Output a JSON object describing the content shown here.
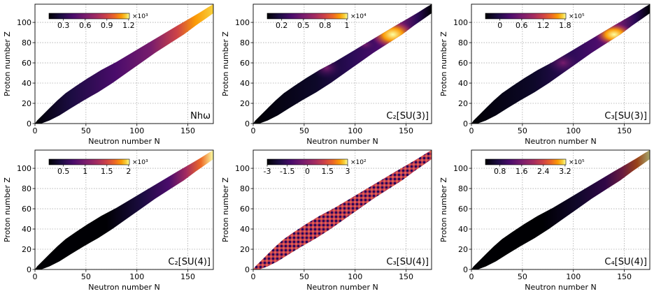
{
  "chart_data": [
    {
      "type": "heatmap",
      "panel_label": "Nhω",
      "xlabel": "Neutron number N",
      "ylabel": "Proton number Z",
      "xlim": [
        0,
        175
      ],
      "ylim": [
        0,
        118
      ],
      "xticks": [
        "0",
        "50",
        "100",
        "150"
      ],
      "yticks": [
        "0",
        "20",
        "40",
        "60",
        "80",
        "100"
      ],
      "grid": true,
      "colormap": "inferno",
      "colorbar": {
        "ticks": [
          "0.3",
          "0.6",
          "0.9",
          "1.2"
        ],
        "exponent": "×10³",
        "placement": "top-left"
      }
    },
    {
      "type": "heatmap",
      "panel_label": "C₂[SU(3)]",
      "xlabel": "Neutron number N",
      "ylabel": "Proton number Z",
      "xlim": [
        0,
        175
      ],
      "ylim": [
        0,
        118
      ],
      "xticks": [
        "0",
        "50",
        "100",
        "150"
      ],
      "yticks": [
        "0",
        "20",
        "40",
        "60",
        "80",
        "100"
      ],
      "grid": true,
      "colormap": "inferno",
      "colorbar": {
        "ticks": [
          "0.2",
          "0.5",
          "0.8",
          "1"
        ],
        "exponent": "×10⁴",
        "placement": "top-left"
      }
    },
    {
      "type": "heatmap",
      "panel_label": "C₃[SU(3)]",
      "xlabel": "Neutron number N",
      "ylabel": "Proton number Z",
      "xlim": [
        0,
        175
      ],
      "ylim": [
        0,
        118
      ],
      "xticks": [
        "0",
        "50",
        "100",
        "150"
      ],
      "yticks": [
        "0",
        "20",
        "40",
        "60",
        "80",
        "100"
      ],
      "grid": true,
      "colormap": "inferno",
      "colorbar": {
        "ticks": [
          "0",
          "0.6",
          "1.2",
          "1.8"
        ],
        "exponent": "×10⁵",
        "placement": "top-left"
      }
    },
    {
      "type": "heatmap",
      "panel_label": "C₂[SU(4)]",
      "xlabel": "Neutron number N",
      "ylabel": "Proton number Z",
      "xlim": [
        0,
        175
      ],
      "ylim": [
        0,
        118
      ],
      "xticks": [
        "0",
        "50",
        "100",
        "150"
      ],
      "yticks": [
        "0",
        "20",
        "40",
        "60",
        "80",
        "100"
      ],
      "grid": true,
      "colormap": "inferno",
      "colorbar": {
        "ticks": [
          "0.5",
          "1",
          "1.5",
          "2"
        ],
        "exponent": "×10³",
        "placement": "top-left"
      }
    },
    {
      "type": "heatmap",
      "panel_label": "C₃[SU(4)]",
      "xlabel": "Neutron number N",
      "ylabel": "Proton number Z",
      "xlim": [
        0,
        175
      ],
      "ylim": [
        0,
        118
      ],
      "xticks": [
        "0",
        "50",
        "100",
        "150"
      ],
      "yticks": [
        "0",
        "20",
        "40",
        "60",
        "80",
        "100"
      ],
      "grid": true,
      "colormap": "inferno",
      "colorbar": {
        "ticks": [
          "-3",
          "-1.5",
          "0",
          "1.5",
          "3"
        ],
        "exponent": "×10²",
        "placement": "top-left"
      }
    },
    {
      "type": "heatmap",
      "panel_label": "C₄[SU(4)]",
      "xlabel": "Neutron number N",
      "ylabel": "Proton number Z",
      "xlim": [
        0,
        175
      ],
      "ylim": [
        0,
        118
      ],
      "xticks": [
        "0",
        "50",
        "100",
        "150"
      ],
      "yticks": [
        "0",
        "20",
        "40",
        "60",
        "80",
        "100"
      ],
      "grid": true,
      "colormap": "inferno",
      "colorbar": {
        "ticks": [
          "0.8",
          "1.6",
          "2.4",
          "3.2"
        ],
        "exponent": "×10⁵",
        "placement": "top-left"
      }
    }
  ]
}
